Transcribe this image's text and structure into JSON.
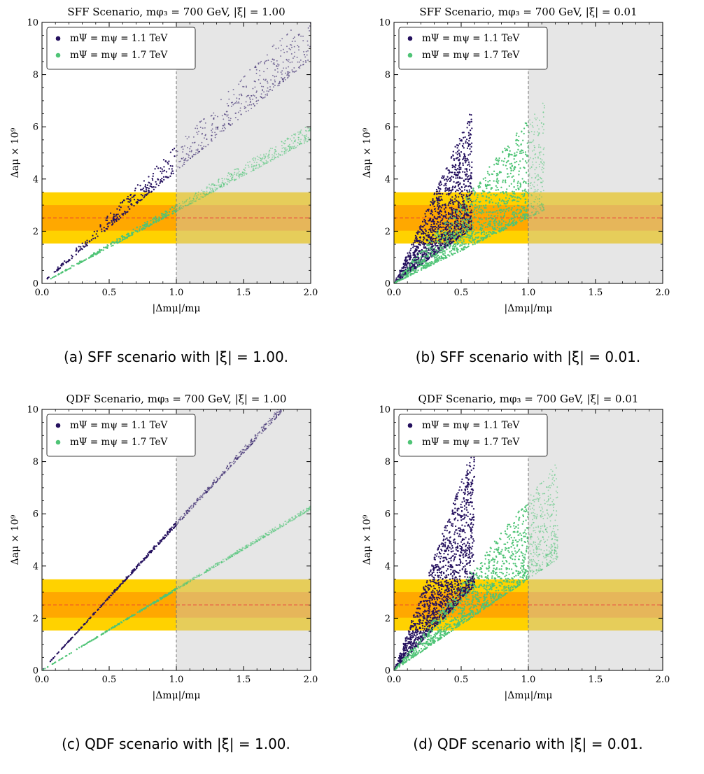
{
  "figure": {
    "captions": [
      "(a) SFF scenario with |ξ| = 1.00.",
      "(b) SFF scenario with |ξ| = 0.01.",
      "(c) QDF scenario with |ξ| = 1.00.",
      "(d) QDF scenario with |ξ| = 0.01."
    ]
  },
  "chart_data": [
    {
      "type": "scatter",
      "title": "SFF Scenario, mφ₃ = 700 GeV, |ξ| = 1.00",
      "xlabel": "|Δmμ|/mμ",
      "ylabel": "Δaμ × 10⁹",
      "xlim": [
        0,
        2
      ],
      "ylim": [
        0,
        10
      ],
      "xticks": [
        "0.0",
        "0.5",
        "1.0",
        "1.5",
        "2.0"
      ],
      "yticks": [
        "0",
        "2",
        "4",
        "6",
        "8",
        "10"
      ],
      "central_value": 2.51,
      "band_1sigma": [
        2.02,
        3.0
      ],
      "band_2sigma": [
        1.53,
        3.49
      ],
      "excluded_region_x_min": 1.0,
      "legend_position": "upper-left",
      "series": [
        {
          "name": "mΨ = mψ = 1.1 TeV",
          "color": "#24105e",
          "slope_min": 4.3,
          "slope_max": 5.3,
          "x_max": 2.0,
          "n_points": 700,
          "sample_points": [
            [
              0.25,
              1.2
            ],
            [
              0.5,
              2.4
            ],
            [
              0.75,
              3.6
            ],
            [
              1.0,
              4.8
            ],
            [
              1.5,
              7.0
            ],
            [
              1.9,
              9.5
            ]
          ]
        },
        {
          "name": "mΨ = mψ = 1.7 TeV",
          "color": "#4fc476",
          "slope_min": 2.75,
          "slope_max": 3.05,
          "x_max": 2.0,
          "n_points": 700,
          "sample_points": [
            [
              0.25,
              0.72
            ],
            [
              0.5,
              1.45
            ],
            [
              1.0,
              2.85
            ],
            [
              1.5,
              4.25
            ],
            [
              2.0,
              5.7
            ]
          ]
        }
      ]
    },
    {
      "type": "scatter",
      "title": "SFF Scenario, mφ₃ = 700 GeV, |ξ| = 0.01",
      "xlabel": "|Δmμ|/mμ",
      "ylabel": "Δaμ × 10⁹",
      "xlim": [
        0,
        2
      ],
      "ylim": [
        0,
        10
      ],
      "xticks": [
        "0.0",
        "0.5",
        "1.0",
        "1.5",
        "2.0"
      ],
      "yticks": [
        "0",
        "2",
        "4",
        "6",
        "8",
        "10"
      ],
      "central_value": 2.51,
      "band_1sigma": [
        2.02,
        3.0
      ],
      "band_2sigma": [
        1.53,
        3.49
      ],
      "excluded_region_x_min": 1.0,
      "legend_position": "upper-left",
      "series": [
        {
          "name": "mΨ = mψ = 1.1 TeV",
          "color": "#24105e",
          "slope_min": 3.6,
          "slope_max": 11.5,
          "x_max": 0.58,
          "n_points": 1400,
          "sample_points": [
            [
              0.1,
              0.7
            ],
            [
              0.2,
              1.6
            ],
            [
              0.3,
              2.5
            ],
            [
              0.4,
              3.3
            ],
            [
              0.55,
              5.5
            ]
          ]
        },
        {
          "name": "mΨ = mψ = 1.7 TeV",
          "color": "#4fc476",
          "slope_min": 2.5,
          "slope_max": 6.3,
          "x_max": 1.12,
          "n_points": 1300,
          "sample_points": [
            [
              0.2,
              0.6
            ],
            [
              0.4,
              1.3
            ],
            [
              0.6,
              2.3
            ],
            [
              0.8,
              3.3
            ],
            [
              1.05,
              5.0
            ]
          ]
        }
      ]
    },
    {
      "type": "scatter",
      "title": "QDF Scenario, mφ₃ = 700 GeV, |ξ| = 1.00",
      "xlabel": "|Δmμ|/mμ",
      "ylabel": "Δaμ × 10⁹",
      "xlim": [
        0,
        2
      ],
      "ylim": [
        0,
        10
      ],
      "xticks": [
        "0.0",
        "0.5",
        "1.0",
        "1.5",
        "2.0"
      ],
      "yticks": [
        "0",
        "2",
        "4",
        "6",
        "8",
        "10"
      ],
      "central_value": 2.51,
      "band_1sigma": [
        2.02,
        3.0
      ],
      "band_2sigma": [
        1.53,
        3.49
      ],
      "excluded_region_x_min": 1.0,
      "legend_position": "upper-left",
      "series": [
        {
          "name": "mΨ = mψ = 1.1 TeV",
          "color": "#24105e",
          "slope_min": 5.55,
          "slope_max": 5.7,
          "x_max": 1.78,
          "n_points": 600,
          "sample_points": [
            [
              0.5,
              2.8
            ],
            [
              1.0,
              5.6
            ],
            [
              1.5,
              8.4
            ],
            [
              1.78,
              10.0
            ]
          ]
        },
        {
          "name": "mΨ = mψ = 1.7 TeV",
          "color": "#4fc476",
          "slope_min": 3.08,
          "slope_max": 3.16,
          "x_max": 2.0,
          "n_points": 600,
          "sample_points": [
            [
              0.5,
              1.56
            ],
            [
              1.0,
              3.12
            ],
            [
              1.5,
              4.68
            ],
            [
              2.0,
              6.25
            ]
          ]
        }
      ]
    },
    {
      "type": "scatter",
      "title": "QDF Scenario, mφ₃ = 700 GeV, |ξ| = 0.01",
      "xlabel": "|Δmμ|/mμ",
      "ylabel": "Δaμ × 10⁹",
      "xlim": [
        0,
        2
      ],
      "ylim": [
        0,
        10
      ],
      "xticks": [
        "0.0",
        "0.5",
        "1.0",
        "1.5",
        "2.0"
      ],
      "yticks": [
        "0",
        "2",
        "4",
        "6",
        "8",
        "10"
      ],
      "central_value": 2.51,
      "band_1sigma": [
        2.02,
        3.0
      ],
      "band_2sigma": [
        1.53,
        3.49
      ],
      "excluded_region_x_min": 1.0,
      "legend_position": "upper-left",
      "series": [
        {
          "name": "mΨ = mψ = 1.1 TeV",
          "color": "#24105e",
          "slope_min": 5.4,
          "slope_max": 14.5,
          "x_max": 0.6,
          "n_points": 1500,
          "sample_points": [
            [
              0.1,
              0.9
            ],
            [
              0.2,
              1.9
            ],
            [
              0.3,
              2.9
            ],
            [
              0.45,
              4.5
            ],
            [
              0.52,
              7.7
            ]
          ]
        },
        {
          "name": "mΨ = mψ = 1.7 TeV",
          "color": "#4fc476",
          "slope_min": 3.5,
          "slope_max": 6.6,
          "x_max": 1.22,
          "n_points": 1500,
          "sample_points": [
            [
              0.3,
              1.1
            ],
            [
              0.6,
              2.4
            ],
            [
              0.9,
              4.0
            ],
            [
              1.2,
              6.5
            ]
          ]
        }
      ]
    }
  ]
}
